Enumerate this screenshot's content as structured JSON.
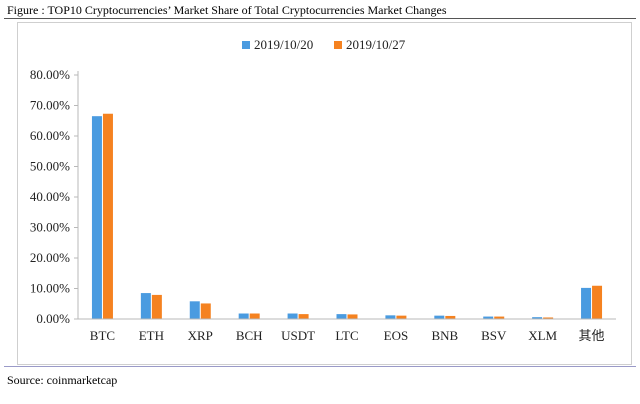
{
  "figure": {
    "caption": "Figure : TOP10 Cryptocurrencies’ Market Share of Total Cryptocurrencies Market Changes",
    "source": "Source: coinmarketcap"
  },
  "chart_data": {
    "type": "bar",
    "title": "",
    "xlabel": "",
    "ylabel": "",
    "categories": [
      "BTC",
      "ETH",
      "XRP",
      "BCH",
      "USDT",
      "LTC",
      "EOS",
      "BNB",
      "BSV",
      "XLM",
      "其他"
    ],
    "series": [
      {
        "name": "2019/10/20",
        "color": "#4a9be0",
        "values": [
          66.5,
          8.5,
          5.8,
          1.8,
          1.8,
          1.6,
          1.2,
          1.1,
          0.8,
          0.6,
          10.2
        ]
      },
      {
        "name": "2019/10/27",
        "color": "#f58220",
        "values": [
          67.3,
          7.9,
          5.1,
          1.8,
          1.6,
          1.5,
          1.1,
          1.0,
          0.8,
          0.5,
          10.9
        ]
      }
    ],
    "ylim": [
      0,
      80
    ],
    "yticks": [
      0,
      10,
      20,
      30,
      40,
      50,
      60,
      70,
      80
    ],
    "ytick_labels": [
      "0.00%",
      "10.00%",
      "20.00%",
      "30.00%",
      "40.00%",
      "50.00%",
      "60.00%",
      "70.00%",
      "80.00%"
    ],
    "legend_position": "top-center",
    "grid": false
  }
}
